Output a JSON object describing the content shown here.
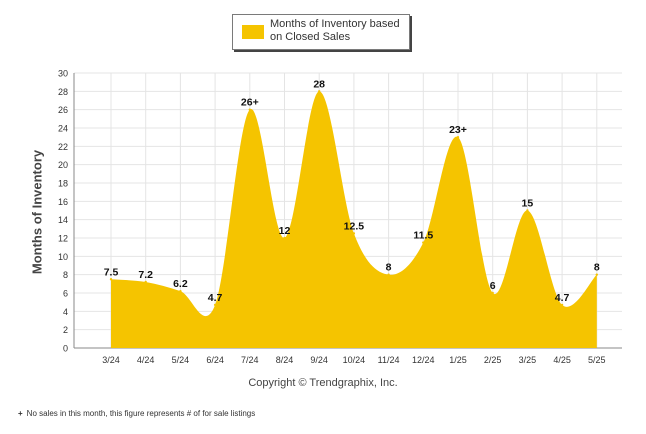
{
  "legend": {
    "label": "Months of Inventory based on Closed Sales"
  },
  "colors": {
    "fill": "#f5c400",
    "grid": "#e4e4e4",
    "axis": "#888888",
    "text": "#333333"
  },
  "copyright": "Copyright © Trendgraphix, Inc.",
  "footnote": {
    "mark": "+",
    "text": "No sales in this month, this figure represents # of for sale listings"
  },
  "chart_data": {
    "type": "area",
    "title": "",
    "xlabel": "",
    "ylabel": "Months of Inventory",
    "ylim": [
      0,
      30
    ],
    "ytick_step": 2,
    "grid": true,
    "legend_position": "top-center",
    "categories": [
      "3/24",
      "4/24",
      "5/24",
      "6/24",
      "7/24",
      "8/24",
      "9/24",
      "10/24",
      "11/24",
      "12/24",
      "1/25",
      "2/25",
      "3/25",
      "4/25",
      "5/25"
    ],
    "series": [
      {
        "name": "Months of Inventory based on Closed Sales",
        "values": [
          7.5,
          7.2,
          6.2,
          4.7,
          26,
          12,
          28,
          12.5,
          8,
          11.5,
          23,
          6,
          15,
          4.7,
          8
        ],
        "labels": [
          "7.5",
          "7.2",
          "6.2",
          "4.7",
          "26+",
          "12",
          "28",
          "12.5",
          "8",
          "11.5",
          "23+",
          "6",
          "15",
          "4.7",
          "8"
        ]
      }
    ]
  }
}
